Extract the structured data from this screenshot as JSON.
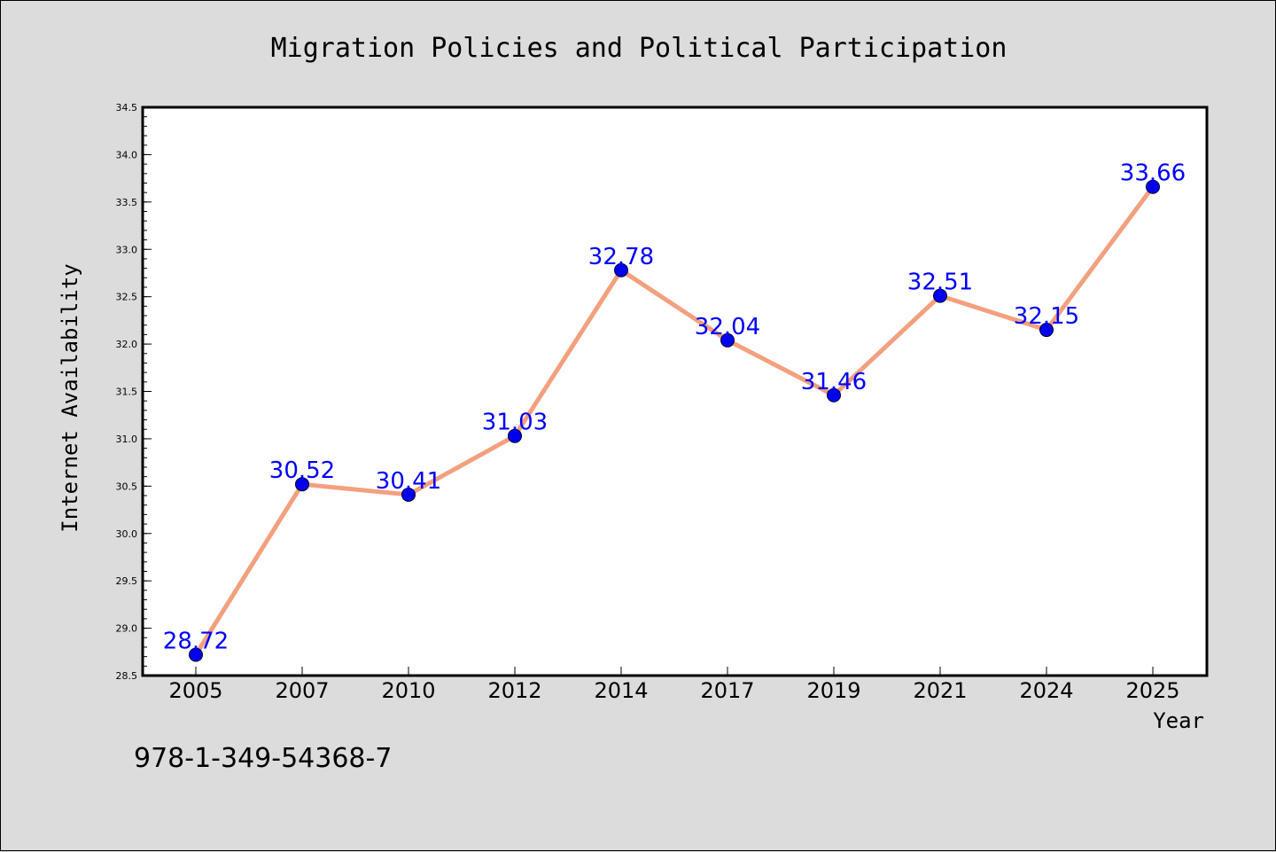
{
  "chart_data": {
    "type": "line",
    "title": "Migration Policies and Political Participation",
    "xlabel": "Year",
    "ylabel": "Internet Availability",
    "categories": [
      "2005",
      "2007",
      "2010",
      "2012",
      "2014",
      "2017",
      "2019",
      "2021",
      "2024",
      "2025"
    ],
    "values": [
      28.72,
      30.52,
      30.41,
      31.03,
      32.78,
      32.04,
      31.46,
      32.51,
      32.15,
      33.66
    ],
    "data_labels": [
      "28.72",
      "30.52",
      "30.41",
      "31.03",
      "32.78",
      "32.04",
      "31.46",
      "32.51",
      "32.15",
      "33.66"
    ],
    "ylim": [
      28.5,
      34.5
    ],
    "yticks": [
      "28.5",
      "29.0",
      "29.5",
      "30.0",
      "30.5",
      "31.0",
      "31.5",
      "32.0",
      "32.5",
      "33.0",
      "33.5",
      "34.0",
      "34.5"
    ],
    "grid": false,
    "legend": "none",
    "colors": {
      "line": "#f4a07e",
      "marker": "#0000ee",
      "label": "#0000ff",
      "background": "#dcdcdc",
      "plot_background": "#ffffff"
    }
  },
  "footnote": "978-1-349-54368-7"
}
